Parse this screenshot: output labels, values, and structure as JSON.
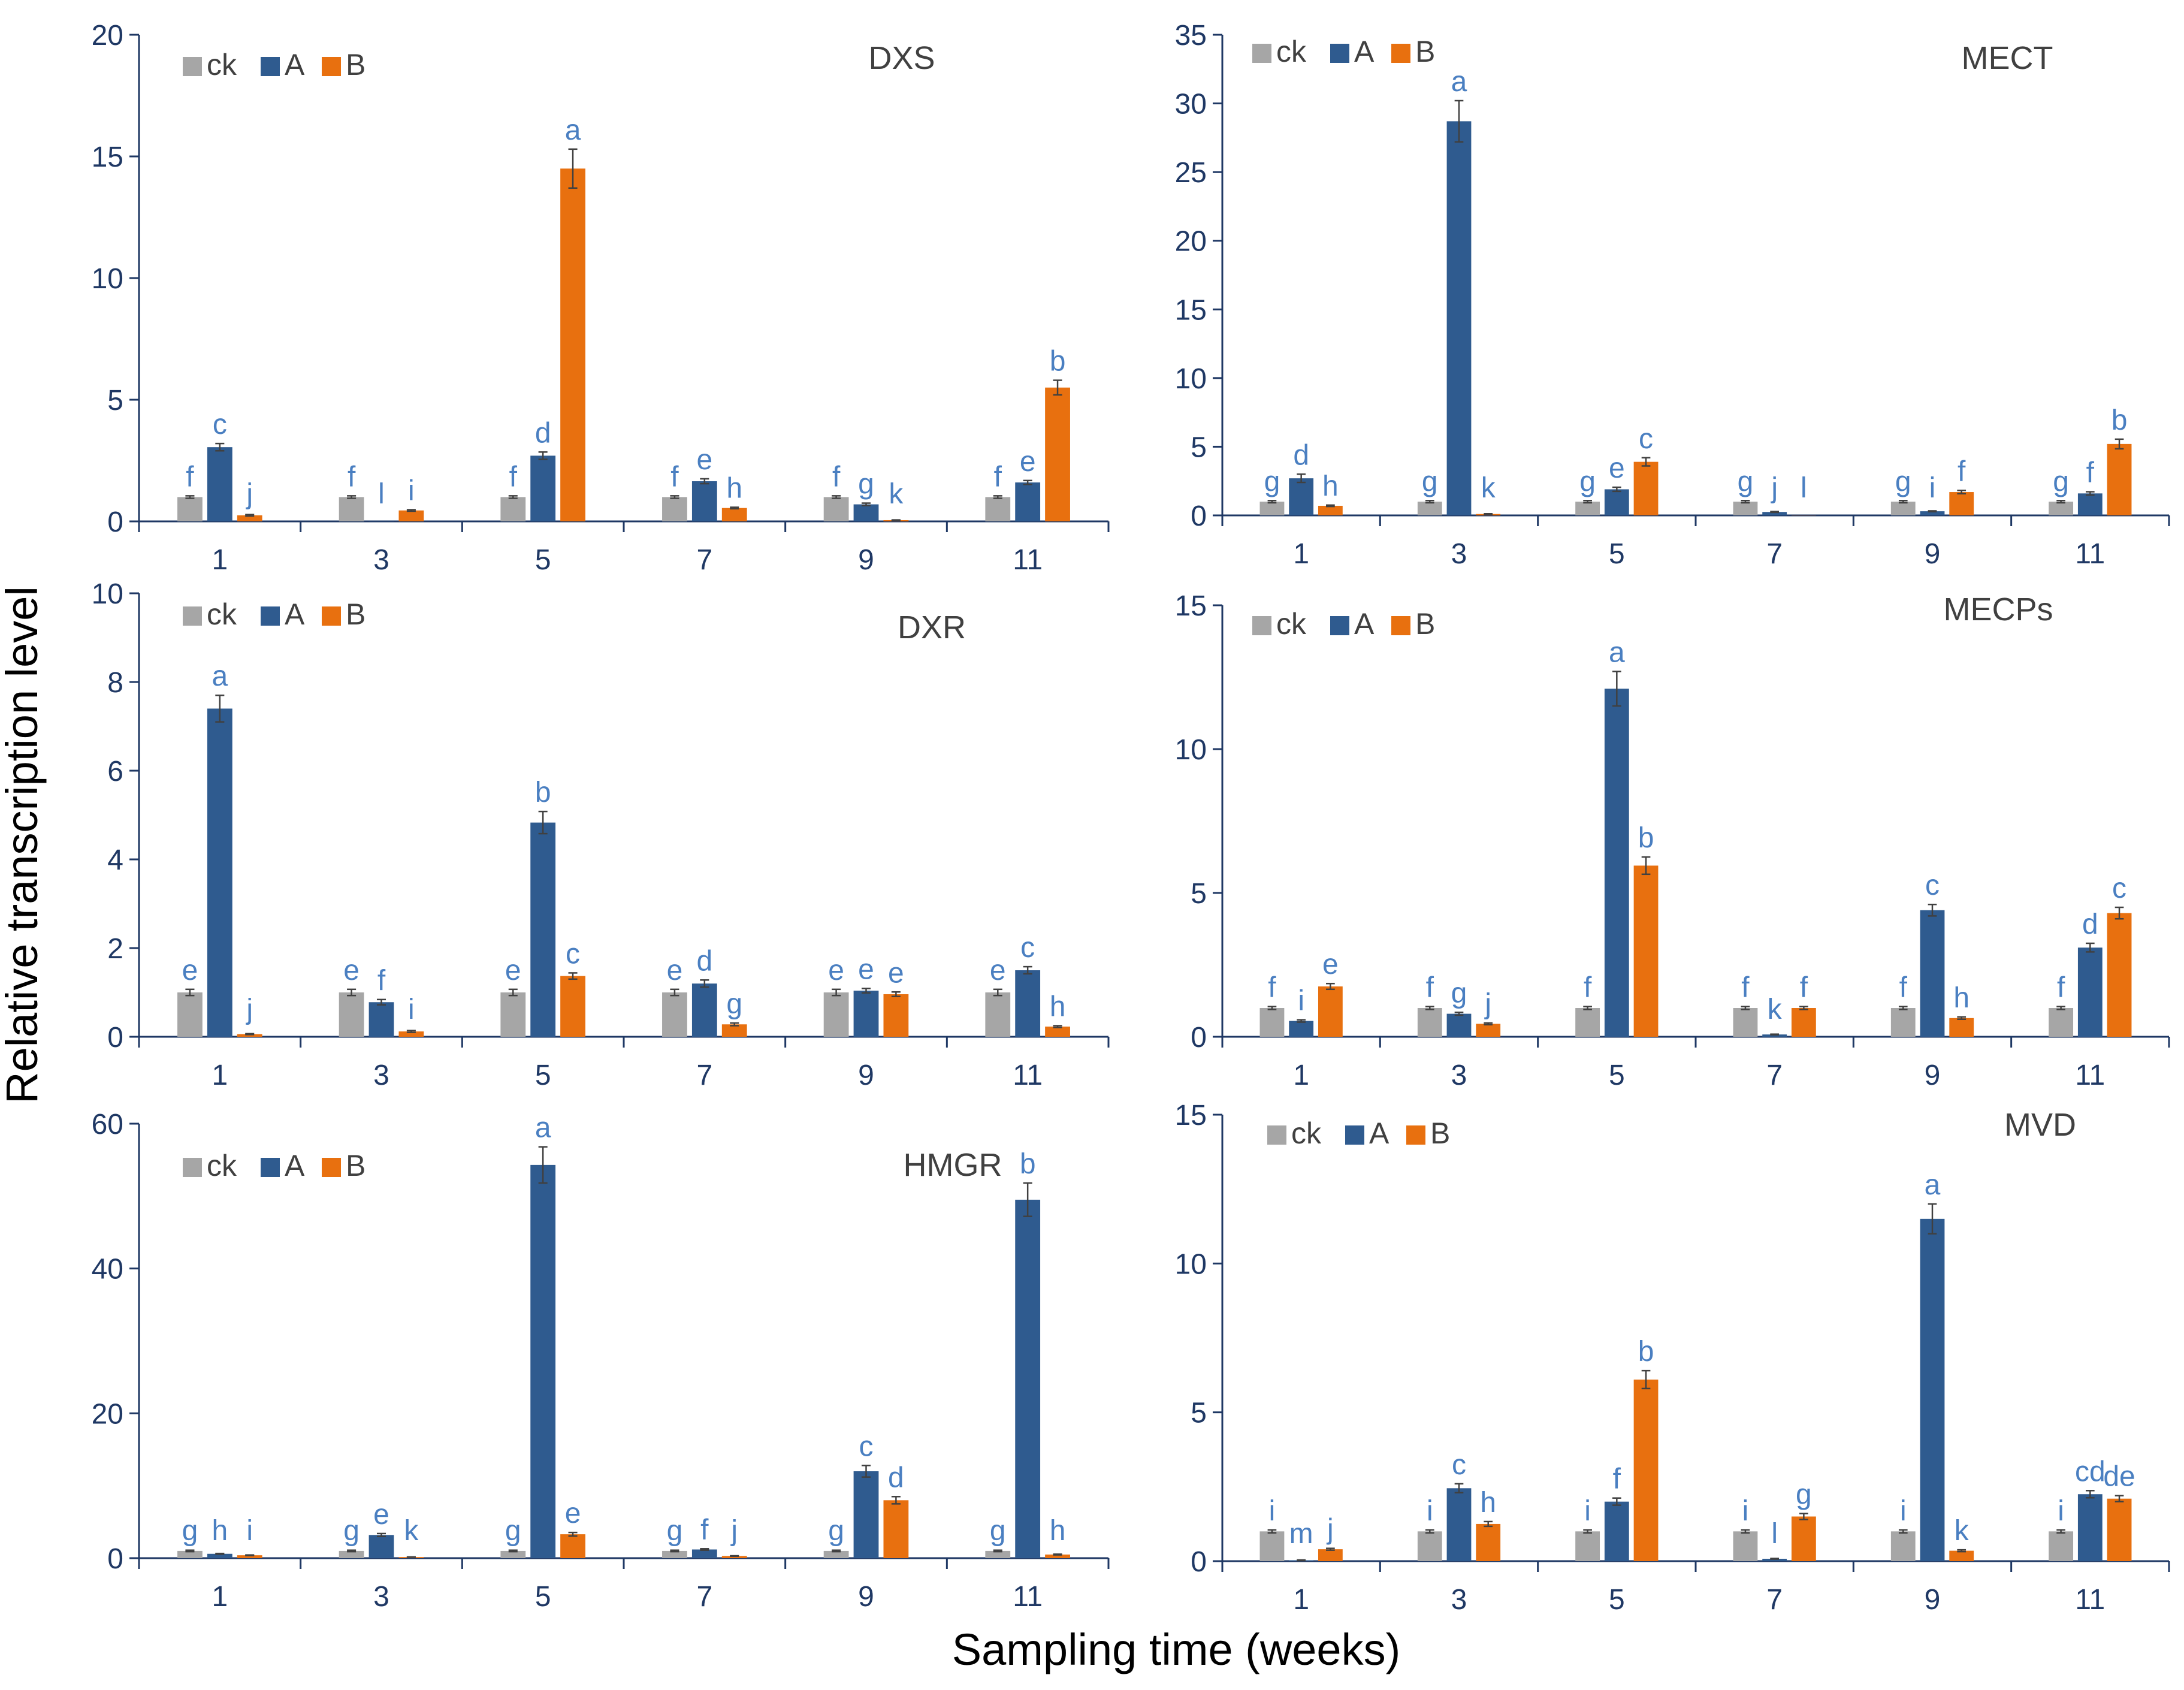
{
  "figure": {
    "ylabel": "Relative transcription level",
    "xlabel": "Sampling time (weeks)",
    "legend": [
      {
        "label": "ck",
        "color": "#a6a6a6"
      },
      {
        "label": "A",
        "color": "#2f5b8f"
      },
      {
        "label": "B",
        "color": "#e8700f"
      }
    ],
    "colors": {
      "axis": "#1f3864",
      "letters": "#4a7fc1",
      "error_bar": "#404040"
    }
  },
  "chart_data": [
    {
      "type": "bar",
      "title": "DXS",
      "xlabel": "Sampling time (weeks)",
      "ylabel": "Relative transcription level",
      "categories": [
        "1",
        "3",
        "5",
        "7",
        "9",
        "11"
      ],
      "ylim": [
        0,
        20
      ],
      "yticks": [
        0,
        5,
        10,
        15,
        20
      ],
      "series": [
        {
          "name": "ck",
          "values": [
            1,
            1,
            1,
            1,
            1,
            1
          ],
          "errors": [
            0.05,
            0.05,
            0.05,
            0.05,
            0.05,
            0.05
          ],
          "letters": [
            "f",
            "f",
            "f",
            "f",
            "f",
            "f"
          ]
        },
        {
          "name": "A",
          "values": [
            3.05,
            0.01,
            2.7,
            1.65,
            0.7,
            1.6
          ],
          "errors": [
            0.15,
            0,
            0.15,
            0.1,
            0.05,
            0.08
          ],
          "letters": [
            "c",
            "l",
            "d",
            "e",
            "g",
            "e"
          ]
        },
        {
          "name": "B",
          "values": [
            0.25,
            0.45,
            14.5,
            0.55,
            0.05,
            5.5
          ],
          "errors": [
            0.03,
            0.03,
            0.8,
            0.03,
            0.01,
            0.3
          ],
          "letters": [
            "j",
            "i",
            "a",
            "h",
            "k",
            "b"
          ]
        }
      ]
    },
    {
      "type": "bar",
      "title": "MECT",
      "xlabel": "Sampling time (weeks)",
      "ylabel": "Relative transcription level",
      "categories": [
        "1",
        "3",
        "5",
        "7",
        "9",
        "11"
      ],
      "ylim": [
        0,
        35
      ],
      "yticks": [
        0,
        5,
        10,
        15,
        20,
        25,
        30,
        35
      ],
      "series": [
        {
          "name": "ck",
          "values": [
            1,
            1,
            1,
            1,
            1,
            1
          ],
          "errors": [
            0.08,
            0.08,
            0.08,
            0.08,
            0.08,
            0.08
          ],
          "letters": [
            "g",
            "g",
            "g",
            "g",
            "g",
            "g"
          ]
        },
        {
          "name": "A",
          "values": [
            2.7,
            28.7,
            1.9,
            0.25,
            0.3,
            1.6
          ],
          "errors": [
            0.3,
            1.5,
            0.15,
            0.03,
            0.03,
            0.12
          ],
          "letters": [
            "d",
            "a",
            "e",
            "j",
            "i",
            "f"
          ]
        },
        {
          "name": "B",
          "values": [
            0.7,
            0.1,
            3.9,
            0.02,
            1.7,
            5.2
          ],
          "errors": [
            0.05,
            0.02,
            0.3,
            0,
            0.12,
            0.35
          ],
          "letters": [
            "h",
            "k",
            "c",
            "l",
            "f",
            "b"
          ]
        }
      ]
    },
    {
      "type": "bar",
      "title": "DXR",
      "xlabel": "Sampling time (weeks)",
      "ylabel": "Relative transcription level",
      "categories": [
        "1",
        "3",
        "5",
        "7",
        "9",
        "11"
      ],
      "ylim": [
        0,
        10
      ],
      "yticks": [
        0,
        2,
        4,
        6,
        8,
        10
      ],
      "series": [
        {
          "name": "ck",
          "values": [
            1,
            1,
            1,
            1,
            1,
            1
          ],
          "errors": [
            0.07,
            0.07,
            0.07,
            0.07,
            0.07,
            0.07
          ],
          "letters": [
            "e",
            "e",
            "e",
            "e",
            "e",
            "e"
          ]
        },
        {
          "name": "A",
          "values": [
            7.4,
            0.78,
            4.83,
            1.2,
            1.04,
            1.5
          ],
          "errors": [
            0.3,
            0.06,
            0.25,
            0.08,
            0.05,
            0.08
          ],
          "letters": [
            "a",
            "f",
            "b",
            "d",
            "e",
            "c"
          ]
        },
        {
          "name": "B",
          "values": [
            0.06,
            0.12,
            1.37,
            0.28,
            0.96,
            0.23
          ],
          "errors": [
            0.01,
            0.02,
            0.07,
            0.03,
            0.05,
            0.02
          ],
          "letters": [
            "j",
            "i",
            "c",
            "g",
            "e",
            "h"
          ]
        }
      ]
    },
    {
      "type": "bar",
      "title": "MECPs",
      "xlabel": "Sampling time (weeks)",
      "ylabel": "Relative transcription level",
      "categories": [
        "1",
        "3",
        "5",
        "7",
        "9",
        "11"
      ],
      "ylim": [
        0,
        15
      ],
      "yticks": [
        0,
        5,
        10,
        15
      ],
      "series": [
        {
          "name": "ck",
          "values": [
            1,
            1,
            1,
            1,
            1,
            1
          ],
          "errors": [
            0.05,
            0.05,
            0.05,
            0.05,
            0.05,
            0.05
          ],
          "letters": [
            "f",
            "f",
            "f",
            "f",
            "f",
            "f"
          ]
        },
        {
          "name": "A",
          "values": [
            0.55,
            0.8,
            12.1,
            0.08,
            4.4,
            3.1
          ],
          "errors": [
            0.04,
            0.05,
            0.6,
            0.01,
            0.2,
            0.15
          ],
          "letters": [
            "i",
            "g",
            "a",
            "k",
            "c",
            "d"
          ]
        },
        {
          "name": "B",
          "values": [
            1.75,
            0.45,
            5.95,
            1.0,
            0.65,
            4.3
          ],
          "errors": [
            0.1,
            0.03,
            0.3,
            0.05,
            0.04,
            0.2
          ],
          "letters": [
            "e",
            "j",
            "b",
            "f",
            "h",
            "c"
          ]
        }
      ]
    },
    {
      "type": "bar",
      "title": "HMGR",
      "xlabel": "Sampling time (weeks)",
      "ylabel": "Relative transcription level",
      "categories": [
        "1",
        "3",
        "5",
        "7",
        "9",
        "11"
      ],
      "ylim": [
        0,
        60
      ],
      "yticks": [
        0,
        20,
        40,
        60
      ],
      "series": [
        {
          "name": "ck",
          "values": [
            1,
            1,
            1,
            1,
            1,
            1
          ],
          "errors": [
            0.1,
            0.1,
            0.1,
            0.1,
            0.1,
            0.1
          ],
          "letters": [
            "g",
            "g",
            "g",
            "g",
            "g",
            "g"
          ]
        },
        {
          "name": "A",
          "values": [
            0.6,
            3.2,
            54.3,
            1.2,
            12.0,
            49.5
          ],
          "errors": [
            0.05,
            0.2,
            2.5,
            0.1,
            0.8,
            2.3
          ],
          "letters": [
            "h",
            "e",
            "a",
            "f",
            "c",
            "b"
          ]
        },
        {
          "name": "B",
          "values": [
            0.4,
            0.15,
            3.3,
            0.3,
            8.0,
            0.5
          ],
          "errors": [
            0.04,
            0.02,
            0.25,
            0.03,
            0.5,
            0.05
          ],
          "letters": [
            "i",
            "k",
            "e",
            "j",
            "d",
            "h"
          ]
        }
      ]
    },
    {
      "type": "bar",
      "title": "MVD",
      "xlabel": "Sampling time (weeks)",
      "ylabel": "Relative transcription level",
      "categories": [
        "1",
        "3",
        "5",
        "7",
        "9",
        "11"
      ],
      "ylim": [
        0,
        15
      ],
      "yticks": [
        0,
        5,
        10,
        15
      ],
      "series": [
        {
          "name": "ck",
          "values": [
            1,
            1,
            1,
            1,
            1,
            1
          ],
          "errors": [
            0.05,
            0.05,
            0.05,
            0.05,
            0.05,
            0.05
          ],
          "letters": [
            "i",
            "i",
            "i",
            "i",
            "i",
            "i"
          ]
        },
        {
          "name": "A",
          "values": [
            0.03,
            2.45,
            2.0,
            0.08,
            11.5,
            2.25
          ],
          "errors": [
            0.01,
            0.15,
            0.12,
            0.01,
            0.5,
            0.12
          ],
          "letters": [
            "m",
            "c",
            "f",
            "l",
            "a",
            "cd"
          ]
        },
        {
          "name": "B",
          "values": [
            0.4,
            1.25,
            6.1,
            1.5,
            0.35,
            2.1
          ],
          "errors": [
            0.03,
            0.08,
            0.3,
            0.1,
            0.03,
            0.1
          ],
          "letters": [
            "j",
            "h",
            "b",
            "g",
            "k",
            "de"
          ]
        }
      ]
    }
  ]
}
